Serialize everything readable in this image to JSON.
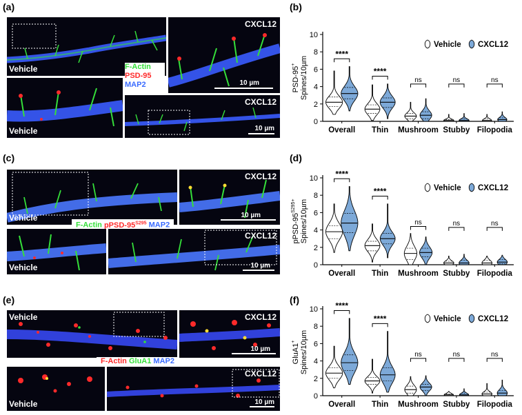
{
  "panels": {
    "a": {
      "label": "(a)",
      "tl": "Vehicle",
      "tr": "CXCL12",
      "bl": "Vehicle",
      "br": "CXCL12",
      "legend": [
        "F-Actin",
        "PSD-95",
        "MAP2"
      ],
      "scale_tr": "10 µm",
      "scale_br": "10 µm"
    },
    "b": {
      "label": "(b)"
    },
    "c": {
      "label": "(c)",
      "tl": "Vehicle",
      "tr": "CXCL12",
      "bl": "Vehicle",
      "br": "CXCL12",
      "legend_a": "F-Actin",
      "legend_b": "pPSD-95",
      "legend_b_sup": "S295",
      "legend_c": "MAP2",
      "scale_tr": "10 µm",
      "scale_br": "10 µm"
    },
    "d": {
      "label": "(d)"
    },
    "e": {
      "label": "(e)",
      "tl": "Vehicle",
      "tr": "CXCL12",
      "bl": "Vehicle",
      "br": "CXCL12",
      "legend": [
        "F-Actin",
        "GluA1",
        "MAP2"
      ],
      "scale_tr": "10 µm",
      "scale_br": "10 µm"
    },
    "f": {
      "label": "(f)"
    }
  },
  "colors": {
    "vehicle": "#ffffff",
    "cxcl12": "#7da9d8",
    "green": "#35e03a",
    "red": "#ff2a2a",
    "blue": "#3a6bff"
  },
  "chart_data": [
    {
      "type": "violin",
      "panel": "b",
      "ylabel_main": "PSD-95",
      "ylabel_sup": "+",
      "ylabel_2": "Spines/10µm",
      "ylim": [
        0,
        10
      ],
      "yticks": [
        0,
        2,
        4,
        6,
        8,
        10
      ],
      "categories": [
        "Overall",
        "Thin",
        "Mushroom",
        "Stubby",
        "Filopodia"
      ],
      "legend": [
        "Vehicle",
        "CXCL12"
      ],
      "series": [
        {
          "name": "Vehicle",
          "median": [
            2.2,
            1.4,
            0.6,
            0.1,
            0.1
          ],
          "q1": [
            1.7,
            0.9,
            0.3,
            0.0,
            0.0
          ],
          "q3": [
            2.8,
            1.9,
            0.9,
            0.2,
            0.3
          ],
          "min": [
            0.8,
            0.1,
            0.0,
            0.0,
            0.0
          ],
          "max": [
            5.8,
            4.2,
            2.2,
            0.8,
            0.8
          ],
          "width": [
            1.0,
            0.9,
            0.7,
            0.6,
            0.55
          ]
        },
        {
          "name": "CXCL12",
          "median": [
            3.2,
            2.2,
            0.7,
            0.1,
            0.2
          ],
          "q1": [
            2.6,
            1.6,
            0.3,
            0.0,
            0.0
          ],
          "q3": [
            3.9,
            2.7,
            1.1,
            0.3,
            0.4
          ],
          "min": [
            1.2,
            0.3,
            0.0,
            0.0,
            0.0
          ],
          "max": [
            6.3,
            4.3,
            2.6,
            0.9,
            1.1
          ],
          "width": [
            1.0,
            0.9,
            0.7,
            0.6,
            0.55
          ]
        }
      ],
      "significance": [
        "****",
        "****",
        "ns",
        "ns",
        "ns"
      ]
    },
    {
      "type": "violin",
      "panel": "d",
      "ylabel_main": "pPSD-95",
      "ylabel_sup": "S295+",
      "ylabel_2": "Spines/10µm",
      "ylim": [
        0,
        10
      ],
      "yticks": [
        0,
        2,
        4,
        6,
        8,
        10
      ],
      "categories": [
        "Overall",
        "Thin",
        "Mushroom",
        "Stubby",
        "Filopodia"
      ],
      "legend": [
        "Vehicle",
        "CXCL12"
      ],
      "series": [
        {
          "name": "Vehicle",
          "median": [
            3.8,
            2.2,
            1.3,
            0.2,
            0.2
          ],
          "q1": [
            3.0,
            1.6,
            0.6,
            0.0,
            0.0
          ],
          "q3": [
            4.5,
            2.7,
            1.9,
            0.4,
            0.5
          ],
          "min": [
            1.4,
            0.3,
            0.0,
            0.0,
            0.0
          ],
          "max": [
            7.0,
            4.7,
            3.6,
            1.0,
            1.0
          ],
          "width": [
            1.0,
            0.9,
            0.75,
            0.6,
            0.6
          ]
        },
        {
          "name": "CXCL12",
          "median": [
            4.8,
            3.0,
            1.4,
            0.2,
            0.3
          ],
          "q1": [
            3.7,
            2.4,
            0.9,
            0.0,
            0.1
          ],
          "q3": [
            5.9,
            3.6,
            1.9,
            0.5,
            0.6
          ],
          "min": [
            1.6,
            0.8,
            0.0,
            0.0,
            0.0
          ],
          "max": [
            9.0,
            7.0,
            3.2,
            1.2,
            1.1
          ],
          "width": [
            1.0,
            0.9,
            0.75,
            0.6,
            0.6
          ]
        }
      ],
      "significance": [
        "****",
        "****",
        "ns",
        "ns",
        "ns"
      ]
    },
    {
      "type": "violin",
      "panel": "f",
      "ylabel_main": "GluA1",
      "ylabel_sup": "+",
      "ylabel_2": "Spines/10µm",
      "ylim": [
        0,
        10
      ],
      "yticks": [
        0,
        2,
        4,
        6,
        8,
        10
      ],
      "categories": [
        "Overall",
        "Thin",
        "Mushroom",
        "Stubby",
        "Filopodia"
      ],
      "legend": [
        "Vehicle",
        "CXCL12"
      ],
      "series": [
        {
          "name": "Vehicle",
          "median": [
            2.6,
            1.7,
            0.7,
            0.1,
            0.2
          ],
          "q1": [
            2.0,
            1.3,
            0.3,
            0.0,
            0.0
          ],
          "q3": [
            3.2,
            2.1,
            1.1,
            0.2,
            0.4
          ],
          "min": [
            0.9,
            0.3,
            0.0,
            0.0,
            0.0
          ],
          "max": [
            5.7,
            4.2,
            2.2,
            0.5,
            1.4
          ],
          "width": [
            1.0,
            0.9,
            0.7,
            0.55,
            0.6
          ]
        },
        {
          "name": "CXCL12",
          "median": [
            3.8,
            2.4,
            1.0,
            0.1,
            0.3
          ],
          "q1": [
            2.9,
            1.7,
            0.6,
            0.0,
            0.0
          ],
          "q3": [
            4.7,
            3.2,
            1.3,
            0.3,
            0.6
          ],
          "min": [
            1.3,
            0.4,
            0.0,
            0.0,
            0.0
          ],
          "max": [
            8.9,
            7.4,
            2.3,
            0.8,
            1.8
          ],
          "width": [
            1.0,
            0.9,
            0.7,
            0.55,
            0.6
          ]
        }
      ],
      "significance": [
        "****",
        "****",
        "ns",
        "ns",
        "ns"
      ]
    }
  ]
}
